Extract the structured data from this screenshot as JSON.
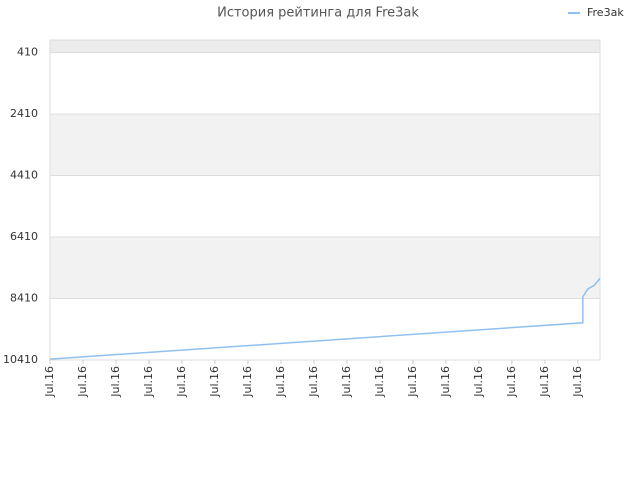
{
  "chart_data": {
    "type": "line",
    "title": "История рейтинга для Fre3ak",
    "x": [
      0,
      16.15,
      16.15,
      16.3,
      16.5,
      16.67
    ],
    "series": [
      {
        "name": "Fre3ak",
        "color": "#90c0f0",
        "values": [
          10380,
          9200,
          8350,
          8100,
          7980,
          7750
        ]
      }
    ],
    "xlim": [
      0,
      16.67
    ],
    "xticks": [
      {
        "value": 0,
        "label": "Jul.16"
      },
      {
        "value": 1,
        "label": "Jul.16"
      },
      {
        "value": 2,
        "label": "Jul.16"
      },
      {
        "value": 3,
        "label": "Jul.16"
      },
      {
        "value": 4,
        "label": "Jul.16"
      },
      {
        "value": 5,
        "label": "Jul.16"
      },
      {
        "value": 6,
        "label": "Jul.16"
      },
      {
        "value": 7,
        "label": "Jul.16"
      },
      {
        "value": 8,
        "label": "Jul.16"
      },
      {
        "value": 9,
        "label": "Jul.16"
      },
      {
        "value": 10,
        "label": "Jul.16"
      },
      {
        "value": 11,
        "label": "Jul.16"
      },
      {
        "value": 12,
        "label": "Jul.16"
      },
      {
        "value": 13,
        "label": "Jul.16"
      },
      {
        "value": 14,
        "label": "Jul.16"
      },
      {
        "value": 15,
        "label": "Jul.16"
      },
      {
        "value": 16,
        "label": "Jul.16"
      }
    ],
    "ylim": [
      0,
      10410
    ],
    "y_reversed": true,
    "yticks": [
      410,
      2410,
      4410,
      6410,
      8410,
      10410
    ],
    "legend": "top-right"
  }
}
